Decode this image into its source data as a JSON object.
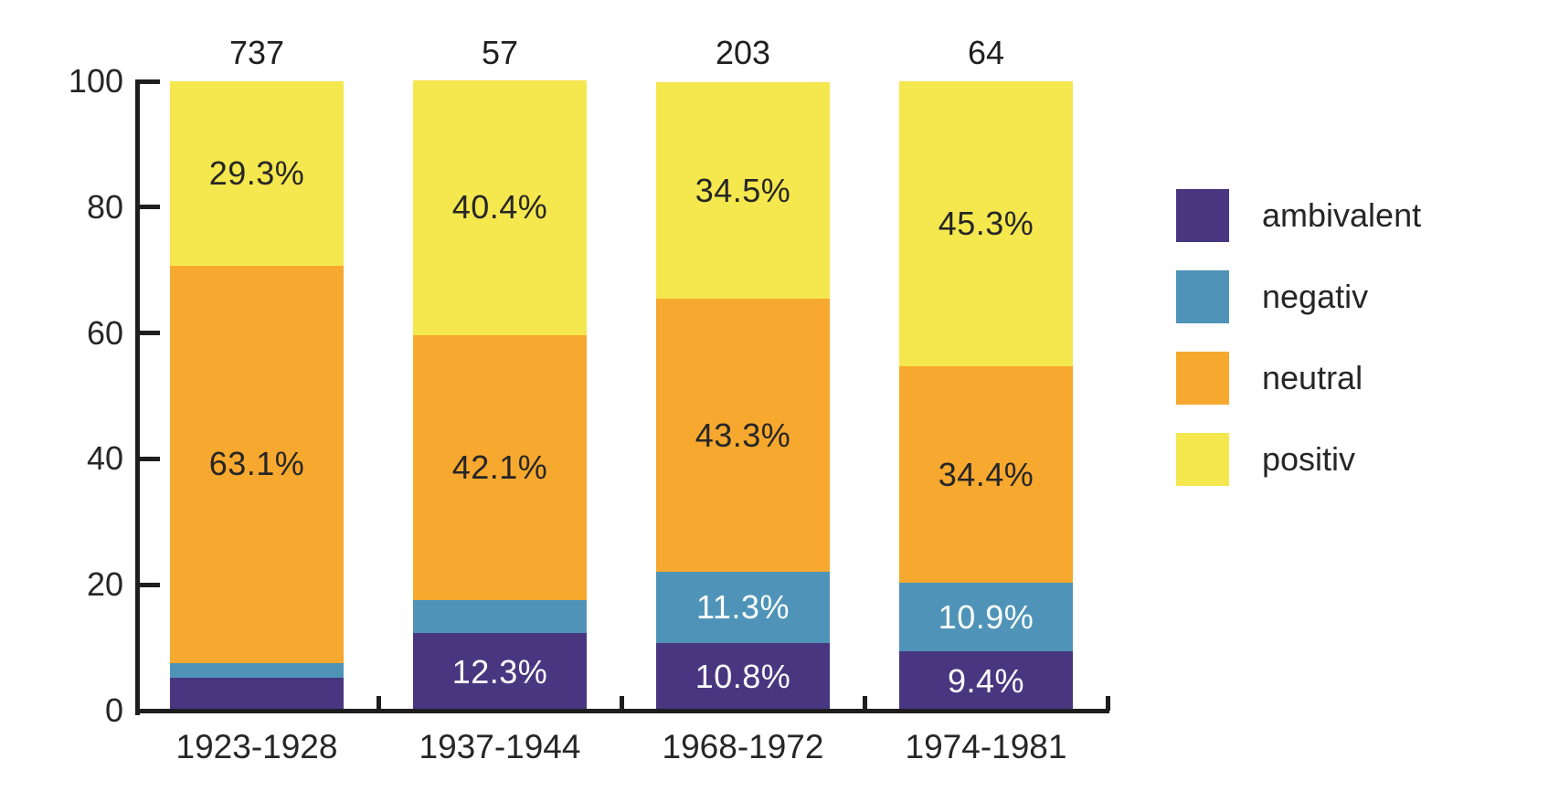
{
  "chart_data": {
    "type": "bar",
    "stacked": true,
    "percent_scale": true,
    "title": "",
    "xlabel": "",
    "ylabel": "",
    "categories": [
      "1923-1928",
      "1937-1944",
      "1968-1972",
      "1974-1981"
    ],
    "bar_totals": [
      "737",
      "57",
      "203",
      "64"
    ],
    "series": [
      {
        "name": "ambivalent",
        "color": "#483780",
        "label_color": "#ffffff",
        "values": [
          5.2,
          12.3,
          10.8,
          9.4
        ],
        "labels": [
          "",
          "12.3%",
          "10.8%",
          "9.4%"
        ]
      },
      {
        "name": "negativ",
        "color": "#4f94b8",
        "label_color": "#ffffff",
        "values": [
          2.4,
          5.3,
          11.3,
          10.9
        ],
        "labels": [
          "",
          "",
          "11.3%",
          "10.9%"
        ]
      },
      {
        "name": "neutral",
        "color": "#f7a82e",
        "label_color": "#262626",
        "values": [
          63.1,
          42.1,
          43.3,
          34.4
        ],
        "labels": [
          "63.1%",
          "42.1%",
          "43.3%",
          "34.4%"
        ]
      },
      {
        "name": "positiv",
        "color": "#f5e74e",
        "label_color": "#262626",
        "values": [
          29.3,
          40.4,
          34.5,
          45.3
        ],
        "labels": [
          "29.3%",
          "40.4%",
          "34.5%",
          "45.3%"
        ]
      }
    ],
    "ylim": [
      0,
      100
    ],
    "yticks": [
      0,
      20,
      40,
      60,
      80,
      100
    ],
    "grid": false,
    "legend_position": "right",
    "axis_color": "#1e1e1e",
    "text_color": "#262626"
  }
}
